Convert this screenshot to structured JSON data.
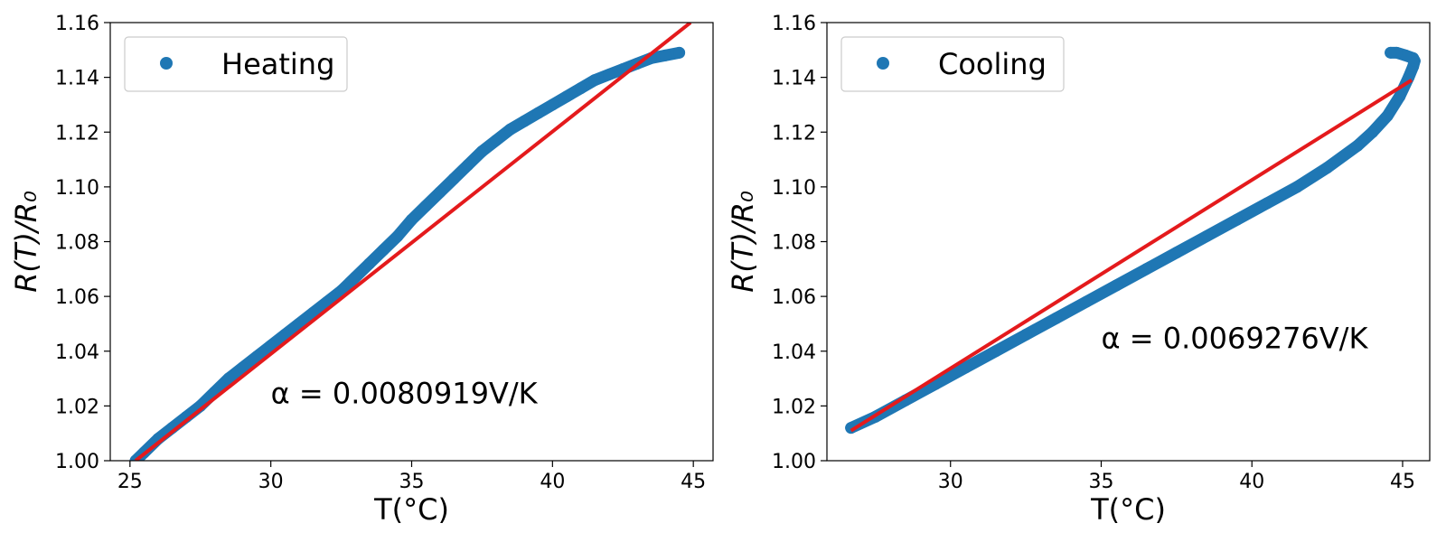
{
  "chart_data": [
    {
      "type": "scatter",
      "title": "",
      "xlabel": "T(°C)",
      "ylabel": "R(T)/R₀",
      "xlim": [
        24.3,
        45.7
      ],
      "ylim": [
        1.0,
        1.16
      ],
      "xticks": [
        25,
        30,
        35,
        40,
        45
      ],
      "yticks": [
        1.0,
        1.02,
        1.04,
        1.06,
        1.08,
        1.1,
        1.12,
        1.14,
        1.16
      ],
      "xtick_labels": [
        "25",
        "30",
        "35",
        "40",
        "45"
      ],
      "ytick_labels": [
        "1.00",
        "1.02",
        "1.04",
        "1.06",
        "1.08",
        "1.10",
        "1.12",
        "1.14",
        "1.16"
      ],
      "legend": {
        "position": "top-left",
        "label": "Heating"
      },
      "annotation": {
        "text": "α = 0.0080919V/K",
        "x": 30,
        "y": 1.021
      },
      "series": [
        {
          "name": "Heating",
          "kind": "scatter",
          "color": "#1f77b4",
          "x": [
            25.2,
            25.5,
            26.0,
            26.5,
            27.0,
            27.5,
            28.0,
            28.5,
            29.0,
            29.5,
            30.0,
            30.5,
            31.0,
            31.5,
            32.0,
            32.5,
            33.0,
            33.5,
            34.0,
            34.5,
            35.0,
            35.5,
            36.0,
            36.5,
            37.0,
            37.5,
            38.0,
            38.5,
            39.0,
            39.5,
            40.0,
            40.5,
            41.0,
            41.5,
            42.0,
            42.5,
            43.0,
            43.5,
            44.0,
            44.5
          ],
          "y": [
            1.0,
            1.003,
            1.008,
            1.012,
            1.016,
            1.02,
            1.025,
            1.03,
            1.034,
            1.038,
            1.042,
            1.046,
            1.05,
            1.054,
            1.058,
            1.062,
            1.067,
            1.072,
            1.077,
            1.082,
            1.088,
            1.093,
            1.098,
            1.103,
            1.108,
            1.113,
            1.117,
            1.121,
            1.124,
            1.127,
            1.13,
            1.133,
            1.136,
            1.139,
            1.141,
            1.143,
            1.145,
            1.147,
            1.148,
            1.149
          ]
        },
        {
          "kind": "line",
          "color": "#e41a1c",
          "x": [
            25.2,
            44.9
          ],
          "y": [
            1.0,
            1.16
          ]
        }
      ]
    },
    {
      "type": "scatter",
      "title": "",
      "xlabel": "T(°C)",
      "ylabel": "R(T)/R₀",
      "xlim": [
        25.9,
        45.9
      ],
      "ylim": [
        1.0,
        1.16
      ],
      "xticks": [
        30,
        35,
        40,
        45
      ],
      "yticks": [
        1.0,
        1.02,
        1.04,
        1.06,
        1.08,
        1.1,
        1.12,
        1.14,
        1.16
      ],
      "xtick_labels": [
        "30",
        "35",
        "40",
        "45"
      ],
      "ytick_labels": [
        "1.00",
        "1.02",
        "1.04",
        "1.06",
        "1.08",
        "1.10",
        "1.12",
        "1.14",
        "1.16"
      ],
      "legend": {
        "position": "top-left",
        "label": "Cooling"
      },
      "annotation": {
        "text": "α = 0.0069276V/K",
        "x": 35,
        "y": 1.041
      },
      "series": [
        {
          "name": "Cooling",
          "kind": "scatter",
          "color": "#1f77b4",
          "x": [
            26.7,
            27.5,
            28.5,
            29.5,
            30.5,
            31.5,
            32.5,
            33.5,
            34.5,
            35.5,
            36.5,
            37.5,
            38.5,
            39.5,
            40.5,
            41.5,
            42.5,
            43.5,
            44.0,
            44.5,
            44.9,
            45.2,
            45.35,
            45.4,
            45.35,
            45.1,
            44.8,
            44.6
          ],
          "y": [
            1.012,
            1.016,
            1.022,
            1.028,
            1.034,
            1.04,
            1.046,
            1.052,
            1.058,
            1.064,
            1.07,
            1.076,
            1.082,
            1.088,
            1.094,
            1.1,
            1.107,
            1.115,
            1.12,
            1.126,
            1.133,
            1.14,
            1.144,
            1.146,
            1.147,
            1.148,
            1.149,
            1.149
          ]
        },
        {
          "kind": "line",
          "color": "#e41a1c",
          "x": [
            26.7,
            45.3
          ],
          "y": [
            1.011,
            1.139
          ]
        }
      ]
    }
  ]
}
